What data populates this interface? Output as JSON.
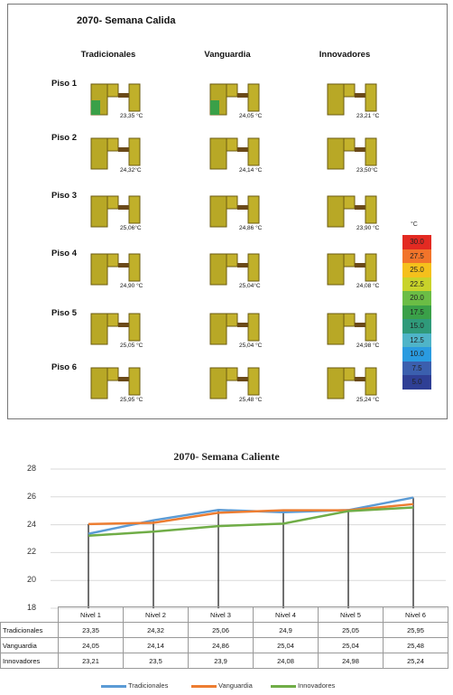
{
  "top_panel": {
    "title": "2070- Semana Calida",
    "columns": [
      "Tradicionales",
      "Vanguardia",
      "Innovadores"
    ],
    "rows": [
      "Piso 1",
      "Piso 2",
      "Piso 3",
      "Piso 4",
      "Piso 5",
      "Piso 6"
    ],
    "temps": [
      [
        "23,35 °C",
        "24,05 °C",
        "23,21 °C"
      ],
      [
        "24,32°C",
        "24,14 °C",
        "23,50°C"
      ],
      [
        "25,06°C",
        "24,86 °C",
        "23,90 °C"
      ],
      [
        "24,90 °C",
        "25,04°C",
        "24,08 °C"
      ],
      [
        "25,05 °C",
        "25,04 °C",
        "24,98 °C"
      ],
      [
        "25,95 °C",
        "25,48 °C",
        "25,24 °C"
      ]
    ],
    "colorbar": {
      "unit": "°C",
      "labels": [
        "30.0",
        "27.5",
        "25.0",
        "22.5",
        "20.0",
        "17.5",
        "15.0",
        "12.5",
        "10.0",
        "7.5",
        "5.0"
      ],
      "colors": [
        "#e32a22",
        "#f2742a",
        "#f5c01c",
        "#c9d32a",
        "#6bbd45",
        "#3aa048",
        "#2f9a7a",
        "#4fb4c8",
        "#2a9be0",
        "#3b5fae",
        "#2f3f95"
      ]
    }
  },
  "chart_data": {
    "type": "line",
    "title": "2070- Semana Caliente",
    "categories": [
      "Nivel 1",
      "Nivel 2",
      "Nivel 3",
      "Nivel 4",
      "Nivel 5",
      "Nivel 6"
    ],
    "ylim": [
      18,
      28
    ],
    "yticks": [
      "28",
      "26",
      "24",
      "22",
      "20",
      "18"
    ],
    "series": [
      {
        "name": "Tradicionales",
        "values": [
          23.35,
          24.32,
          25.06,
          24.9,
          25.05,
          25.95
        ],
        "labels": [
          "23,35",
          "24,32",
          "25,06",
          "24,9",
          "25,05",
          "25,95"
        ],
        "color": "#5b9bd5"
      },
      {
        "name": "Vanguardia",
        "values": [
          24.05,
          24.14,
          24.86,
          25.04,
          25.04,
          25.48
        ],
        "labels": [
          "24,05",
          "24,14",
          "24,86",
          "25,04",
          "25,04",
          "25,48"
        ],
        "color": "#ed7d31"
      },
      {
        "name": "Innovadores",
        "values": [
          23.21,
          23.5,
          23.9,
          24.08,
          24.98,
          25.24
        ],
        "labels": [
          "23,21",
          "23,5",
          "23,9",
          "24,08",
          "24,98",
          "25,24"
        ],
        "color": "#70ad47"
      }
    ]
  }
}
